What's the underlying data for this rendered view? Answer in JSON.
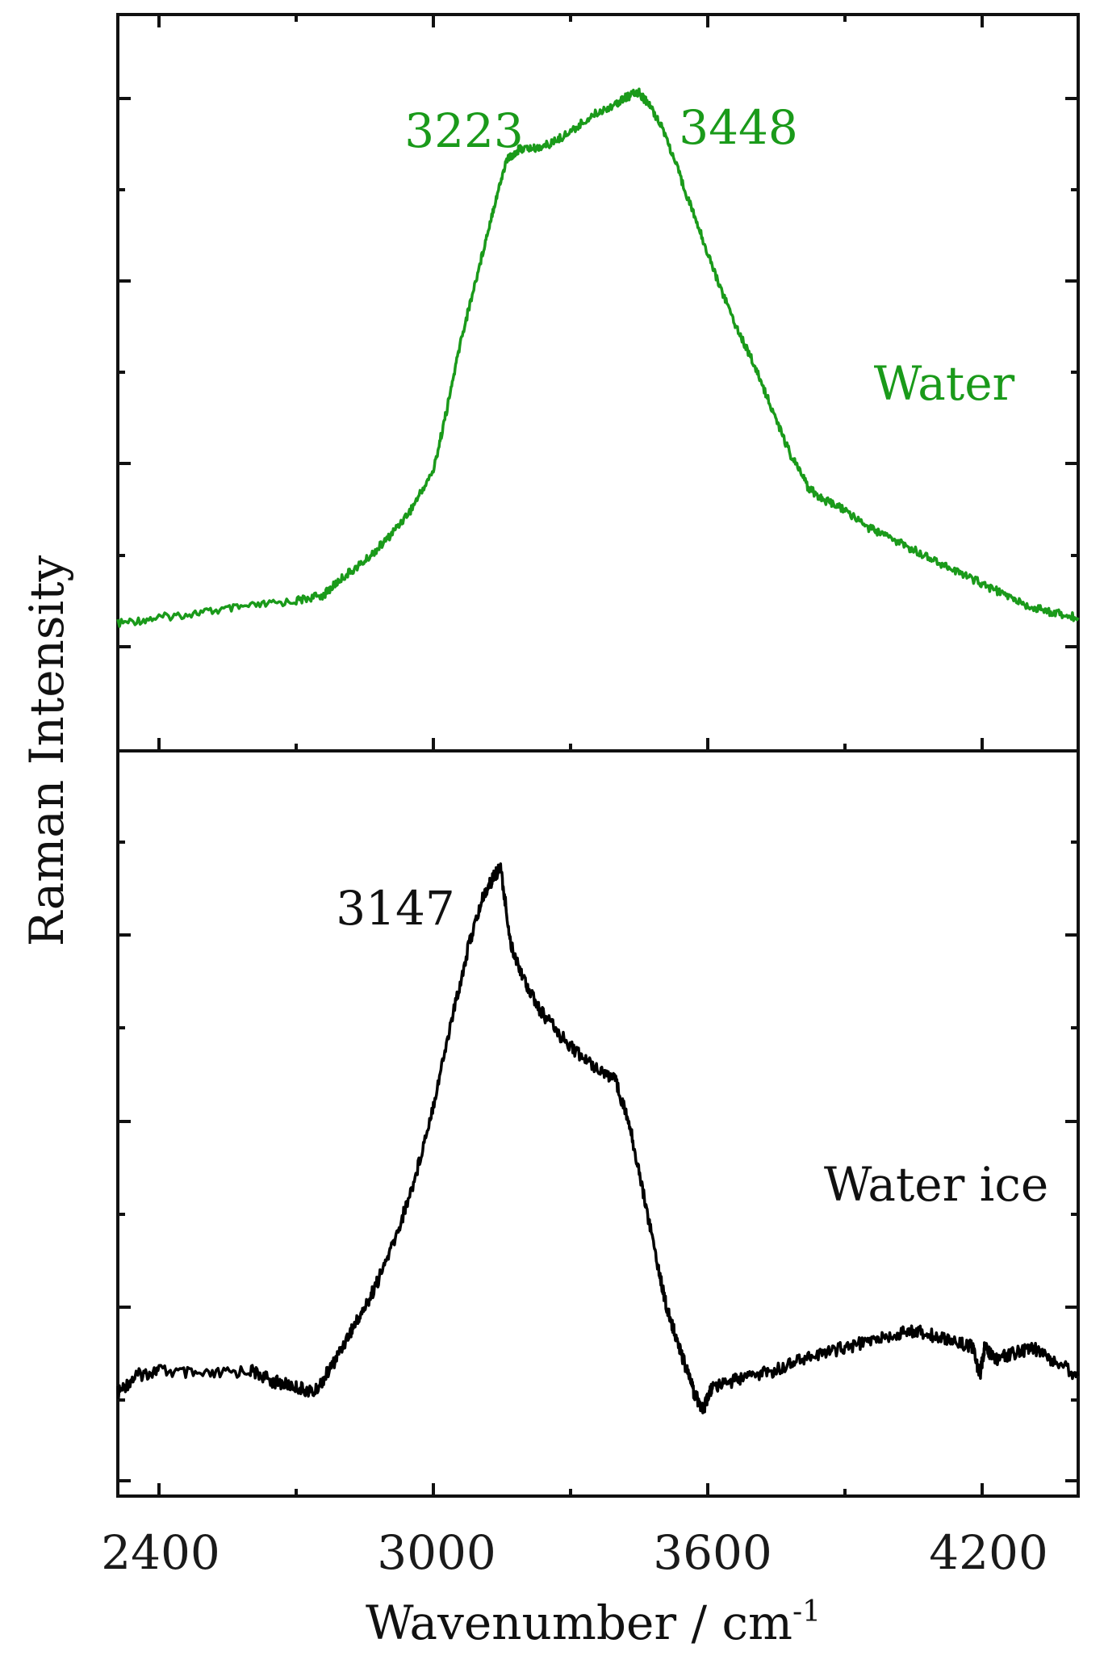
{
  "chart_data": {
    "type": "line",
    "xlabel": "Wavenumber / cm",
    "xlabel_superscript": "-1",
    "ylabel": "Raman Intensity",
    "xlim": [
      2310,
      4410
    ],
    "x_ticks": [
      2400,
      3000,
      3600,
      4200
    ],
    "x_tick_labels": [
      "2400",
      "3000",
      "3600",
      "4200"
    ],
    "colors": {
      "water": "#1a9a1a",
      "ice": "#000000"
    },
    "panels": [
      {
        "position": "top",
        "ylim": [
          0,
          1
        ],
        "series": [
          {
            "name": "Water",
            "color": "#1a9a1a",
            "x": [
              2310,
              2400,
              2500,
              2600,
              2700,
              2760,
              2800,
              2850,
              2900,
              2950,
              3000,
              3030,
              3060,
              3100,
              3130,
              3160,
              3190,
              3223,
              3260,
              3300,
              3350,
              3400,
              3420,
              3448,
              3470,
              3500,
              3540,
              3580,
              3620,
              3660,
              3700,
              3740,
              3780,
              3820,
              3850,
              3900,
              3950,
              4000,
              4050,
              4100,
              4150,
              4200,
              4250,
              4300,
              4350,
              4410
            ],
            "y": [
              0.08,
              0.09,
              0.1,
              0.11,
              0.12,
              0.13,
              0.16,
              0.19,
              0.23,
              0.28,
              0.35,
              0.46,
              0.58,
              0.71,
              0.81,
              0.9,
              0.92,
              0.92,
              0.93,
              0.95,
              0.98,
              1.0,
              1.01,
              1.02,
              1.0,
              0.96,
              0.87,
              0.78,
              0.69,
              0.61,
              0.54,
              0.46,
              0.38,
              0.32,
              0.3,
              0.28,
              0.25,
              0.23,
              0.21,
              0.19,
              0.17,
              0.15,
              0.13,
              0.11,
              0.1,
              0.09
            ]
          }
        ],
        "annotations": [
          {
            "text": "3223",
            "color": "#1a9a1a"
          },
          {
            "text": "3448",
            "color": "#1a9a1a"
          },
          {
            "text": "Water",
            "color": "#1a9a1a"
          }
        ]
      },
      {
        "position": "bottom",
        "ylim": [
          0,
          1
        ],
        "series": [
          {
            "name": "Water ice",
            "color": "#000000",
            "x": [
              2310,
              2350,
              2400,
              2500,
              2600,
              2650,
              2700,
              2740,
              2780,
              2820,
              2850,
              2880,
              2920,
              2960,
              3000,
              3040,
              3080,
              3110,
              3130,
              3147,
              3170,
              3200,
              3230,
              3280,
              3330,
              3370,
              3400,
              3430,
              3460,
              3490,
              3510,
              3530,
              3550,
              3570,
              3590,
              3610,
              3650,
              3700,
              3750,
              3800,
              3850,
              3900,
              3950,
              4000,
              4050,
              4100,
              4150,
              4180,
              4195,
              4205,
              4230,
              4270,
              4310,
              4350,
              4410
            ],
            "y": [
              0.05,
              0.08,
              0.09,
              0.08,
              0.09,
              0.07,
              0.06,
              0.05,
              0.1,
              0.16,
              0.2,
              0.25,
              0.33,
              0.43,
              0.56,
              0.71,
              0.85,
              0.93,
              0.96,
              0.98,
              0.84,
              0.78,
              0.73,
              0.68,
              0.64,
              0.62,
              0.6,
              0.52,
              0.4,
              0.28,
              0.2,
              0.15,
              0.1,
              0.05,
              0.02,
              0.06,
              0.07,
              0.08,
              0.09,
              0.11,
              0.12,
              0.13,
              0.14,
              0.15,
              0.16,
              0.15,
              0.14,
              0.13,
              0.08,
              0.13,
              0.11,
              0.12,
              0.13,
              0.11,
              0.08
            ]
          }
        ],
        "annotations": [
          {
            "text": "3147",
            "color": "#000000"
          },
          {
            "text": "Water ice",
            "color": "#000000"
          }
        ]
      }
    ]
  }
}
